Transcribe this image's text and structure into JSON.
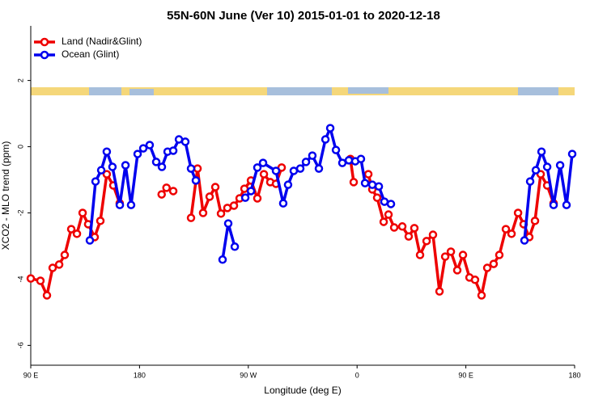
{
  "chart_data": {
    "type": "line",
    "title": "55N-60N June (Ver 10)   2015-01-01 to 2020-12-18",
    "x_label": "Longitude (deg E)",
    "y_label": "XCO2 - MLO trend (ppm)",
    "xlim": [
      90,
      540
    ],
    "ylim": [
      -6.6,
      3.65
    ],
    "xticks": [
      {
        "value": 90,
        "label": "90 E"
      },
      180,
      {
        "value": 270,
        "label": "90 W"
      },
      {
        "value": 360,
        "label": "0"
      },
      {
        "value": 450,
        "label": "90 E"
      },
      {
        "value": 540,
        "label": "180"
      }
    ],
    "yticks": [
      -6,
      -4,
      -2,
      0,
      2
    ],
    "legend": "top-left",
    "series": [
      {
        "name": "Land (Nadir&Glint)",
        "color": "#ee0000",
        "x": [
          90,
          98,
          103.4,
          108.1,
          113.5,
          118.1,
          123.5,
          128.2,
          132.9,
          137.5,
          142.9,
          147.6,
          152.9,
          158.3,
          163.6,
          null,
          198.3,
          202.3,
          207.9,
          null,
          222.6,
          228,
          232.6,
          238,
          242.7,
          247.4,
          252.7,
          258.1,
          262.8,
          266.8,
          272.2,
          277.5,
          282.9,
          288.2,
          292.9,
          297.6,
          null,
          354.5,
          357.2,
          null,
          369.3,
          372.6,
          376.6,
          382,
          386,
          390.7,
          397.4,
          402.7,
          407.4,
          412.1,
          417.5,
          422.8,
          428.2,
          432.9,
          437.6,
          442.9,
          447.6,
          453,
          457.6,
          463,
          467.7,
          473,
          477.7,
          483.1,
          487.8,
          493.2,
          497.8,
          502.5,
          507.2,
          511.9,
          517.3,
          522.6
        ],
        "values": [
          -3.98,
          -4.05,
          -4.49,
          -3.66,
          -3.56,
          -3.27,
          -2.49,
          -2.63,
          -2.0,
          -2.34,
          -2.73,
          -2.24,
          -0.83,
          -1.17,
          -1.71,
          null,
          -1.44,
          -1.24,
          -1.34,
          null,
          -2.15,
          -0.66,
          -2.0,
          -1.51,
          -1.22,
          -2.02,
          -1.85,
          -1.78,
          -1.56,
          -1.27,
          -1.02,
          -1.56,
          -0.83,
          -1.07,
          -1.12,
          -0.63,
          null,
          -0.37,
          -1.07,
          null,
          -0.83,
          -1.29,
          -1.54,
          -2.27,
          -2.05,
          -2.44,
          -2.41,
          -2.71,
          -2.46,
          -3.27,
          -2.85,
          -2.66,
          -4.37,
          -3.32,
          -3.17,
          -3.73,
          -3.27,
          -3.95,
          -4.02,
          -4.49,
          -3.66,
          -3.54,
          -3.27,
          -2.49,
          -2.63,
          -2.0,
          -2.34,
          -2.73,
          -2.24,
          -0.83,
          -1.17,
          -1.71
        ]
      },
      {
        "name": "Ocean (Glint)",
        "color": "#0000ee",
        "x": [
          138.9,
          143.6,
          148.3,
          152.9,
          157.6,
          163.7,
          168.4,
          173,
          178.4,
          183.1,
          188.4,
          193.8,
          198.5,
          203.2,
          207.9,
          212.6,
          217.9,
          222.6,
          226.6,
          null,
          248.7,
          253.4,
          258.8,
          null,
          267.5,
          272.2,
          277.5,
          282.2,
          292.9,
          298.9,
          302.9,
          307.6,
          313,
          317.7,
          323,
          328.4,
          333.8,
          337.8,
          342.5,
          347.8,
          353.2,
          358.5,
          363.2,
          366.6,
          372.6,
          378,
          382.6,
          388,
          null,
          498.5,
          503.2,
          507.9,
          512.6,
          517.3,
          522.6,
          528,
          533.3,
          538
        ],
        "values": [
          -2.83,
          -1.05,
          -0.71,
          -0.15,
          -0.61,
          -1.76,
          -0.56,
          -1.76,
          -0.22,
          -0.05,
          0.05,
          -0.46,
          -0.61,
          -0.15,
          -0.12,
          0.22,
          0.15,
          -0.66,
          -1.02,
          null,
          -3.41,
          -2.32,
          -3.02,
          null,
          -1.54,
          -1.34,
          -0.63,
          -0.49,
          -0.73,
          -1.71,
          -1.15,
          -0.73,
          -0.66,
          -0.46,
          -0.27,
          -0.66,
          0.22,
          0.56,
          -0.1,
          -0.49,
          -0.41,
          -0.44,
          -0.37,
          -1.1,
          -1.15,
          -1.2,
          -1.66,
          -1.73,
          null,
          -2.83,
          -1.05,
          -0.71,
          -0.15,
          -0.61,
          -1.76,
          -0.56,
          -1.76,
          -0.22
        ]
      }
    ]
  }
}
